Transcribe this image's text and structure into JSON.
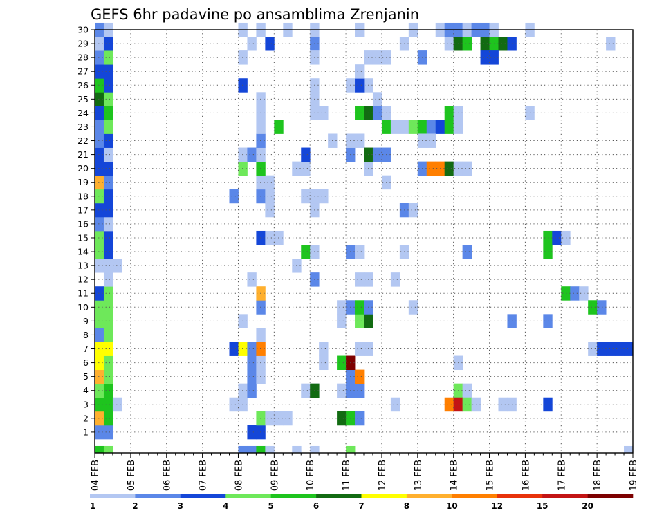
{
  "chart_data": {
    "type": "heatmap",
    "title": "GEFS 6hr padavine po ansamblima Zrenjanin",
    "xlabel": "",
    "ylabel": "",
    "x_tick_labels": [
      "04 FEB",
      "05 FEB",
      "06 FEB",
      "07 FEB",
      "08 FEB",
      "09 FEB",
      "10 FEB",
      "11 FEB",
      "12 FEB",
      "13 FEB",
      "14 FEB",
      "15 FEB",
      "16 FEB",
      "17 FEB",
      "18 FEB",
      "19 FEB"
    ],
    "xlim_steps": [
      0,
      60
    ],
    "step_hours": 6,
    "y_tick_labels": [
      "1",
      "2",
      "3",
      "4",
      "5",
      "6",
      "7",
      "8",
      "9",
      "10",
      "11",
      "12",
      "13",
      "14",
      "15",
      "16",
      "17",
      "18",
      "19",
      "20",
      "21",
      "22",
      "23",
      "24",
      "25",
      "26",
      "27",
      "28",
      "29",
      "30"
    ],
    "ylim": [
      0,
      30
    ],
    "grid": true,
    "legend": "bottom colorbar",
    "colorbar": {
      "boundaries": [
        "1",
        "2",
        "3",
        "4",
        "5",
        "6",
        "7",
        "8",
        "10",
        "12",
        "15",
        "20"
      ],
      "colors": [
        "#b3c7f2",
        "#5b87e8",
        "#1446d8",
        "#6ee85a",
        "#1ec41e",
        "#126b12",
        "#ffff00",
        "#ffb02e",
        "#ff7f00",
        "#e8320a",
        "#c31414",
        "#7d0000"
      ]
    },
    "cells_note": "each cell = [step, member, color_index]; step 0 = 04 FEB 00z, 6 h per step; member 0 = control row below 1",
    "cells": [
      [
        0,
        0,
        4
      ],
      [
        1,
        0,
        3
      ],
      [
        0,
        1,
        1
      ],
      [
        1,
        1,
        1
      ],
      [
        0,
        2,
        7
      ],
      [
        1,
        2,
        4
      ],
      [
        0,
        3,
        4
      ],
      [
        1,
        3,
        4
      ],
      [
        2,
        3,
        0
      ],
      [
        0,
        4,
        3
      ],
      [
        1,
        4,
        4
      ],
      [
        0,
        5,
        7
      ],
      [
        1,
        5,
        3
      ],
      [
        0,
        6,
        6
      ],
      [
        1,
        6,
        3
      ],
      [
        0,
        7,
        6
      ],
      [
        1,
        7,
        6
      ],
      [
        0,
        8,
        1
      ],
      [
        1,
        8,
        3
      ],
      [
        0,
        9,
        3
      ],
      [
        1,
        9,
        3
      ],
      [
        0,
        10,
        3
      ],
      [
        1,
        10,
        3
      ],
      [
        0,
        11,
        2
      ],
      [
        1,
        11,
        3
      ],
      [
        1,
        12,
        0
      ],
      [
        0,
        13,
        0
      ],
      [
        1,
        13,
        0
      ],
      [
        2,
        13,
        0
      ],
      [
        0,
        14,
        3
      ],
      [
        1,
        14,
        2
      ],
      [
        0,
        15,
        3
      ],
      [
        1,
        15,
        2
      ],
      [
        0,
        16,
        1
      ],
      [
        1,
        16,
        0
      ],
      [
        0,
        17,
        2
      ],
      [
        1,
        17,
        2
      ],
      [
        0,
        18,
        3
      ],
      [
        1,
        18,
        2
      ],
      [
        0,
        19,
        7
      ],
      [
        1,
        19,
        1
      ],
      [
        0,
        20,
        2
      ],
      [
        1,
        20,
        2
      ],
      [
        0,
        21,
        2
      ],
      [
        1,
        21,
        0
      ],
      [
        0,
        22,
        1
      ],
      [
        1,
        22,
        2
      ],
      [
        0,
        23,
        1
      ],
      [
        1,
        23,
        3
      ],
      [
        0,
        24,
        2
      ],
      [
        1,
        24,
        4
      ],
      [
        0,
        25,
        5
      ],
      [
        1,
        25,
        3
      ],
      [
        0,
        26,
        4
      ],
      [
        1,
        26,
        2
      ],
      [
        0,
        27,
        2
      ],
      [
        1,
        27,
        2
      ],
      [
        0,
        28,
        1
      ],
      [
        1,
        28,
        3
      ],
      [
        0,
        29,
        0
      ],
      [
        1,
        29,
        2
      ],
      [
        0,
        30,
        1
      ],
      [
        1,
        30,
        0
      ],
      [
        16,
        0,
        1
      ],
      [
        17,
        0,
        1
      ],
      [
        18,
        0,
        4
      ],
      [
        19,
        0,
        0
      ],
      [
        17,
        1,
        2
      ],
      [
        18,
        1,
        2
      ],
      [
        18,
        2,
        3
      ],
      [
        19,
        2,
        0
      ],
      [
        20,
        2,
        0
      ],
      [
        21,
        2,
        0
      ],
      [
        15,
        3,
        0
      ],
      [
        16,
        3,
        0
      ],
      [
        16,
        4,
        0
      ],
      [
        17,
        4,
        1
      ],
      [
        17,
        5,
        1
      ],
      [
        18,
        5,
        0
      ],
      [
        17,
        6,
        1
      ],
      [
        18,
        6,
        0
      ],
      [
        15,
        7,
        2
      ],
      [
        16,
        7,
        6
      ],
      [
        17,
        7,
        1
      ],
      [
        18,
        7,
        8
      ],
      [
        18,
        8,
        0
      ],
      [
        16,
        9,
        0
      ],
      [
        18,
        10,
        1
      ],
      [
        18,
        11,
        7
      ],
      [
        17,
        12,
        0
      ],
      [
        18,
        15,
        2
      ],
      [
        19,
        15,
        0
      ],
      [
        20,
        15,
        0
      ],
      [
        19,
        17,
        0
      ],
      [
        19,
        18,
        0
      ],
      [
        15,
        18,
        1
      ],
      [
        18,
        18,
        1
      ],
      [
        19,
        18,
        0
      ],
      [
        18,
        19,
        0
      ],
      [
        19,
        19,
        0
      ],
      [
        16,
        20,
        3
      ],
      [
        18,
        20,
        4
      ],
      [
        16,
        21,
        0
      ],
      [
        17,
        21,
        1
      ],
      [
        18,
        21,
        0
      ],
      [
        18,
        22,
        1
      ],
      [
        18,
        23,
        0
      ],
      [
        18,
        24,
        0
      ],
      [
        18,
        25,
        0
      ],
      [
        16,
        26,
        2
      ],
      [
        16,
        28,
        0
      ],
      [
        17,
        29,
        0
      ],
      [
        16,
        30,
        0
      ],
      [
        18,
        30,
        0
      ],
      [
        22,
        0,
        0
      ],
      [
        24,
        0,
        0
      ],
      [
        23,
        20,
        0
      ],
      [
        22,
        20,
        0
      ],
      [
        20,
        23,
        4
      ],
      [
        24,
        29,
        0
      ],
      [
        19,
        29,
        2
      ],
      [
        21,
        30,
        0
      ],
      [
        23,
        4,
        0
      ],
      [
        24,
        4,
        0
      ],
      [
        24,
        12,
        1
      ],
      [
        22,
        13,
        0
      ],
      [
        25,
        6,
        0
      ],
      [
        23,
        21,
        2
      ],
      [
        24,
        24,
        0
      ],
      [
        25,
        24,
        0
      ],
      [
        24,
        25,
        0
      ],
      [
        24,
        26,
        0
      ],
      [
        24,
        29,
        1
      ],
      [
        24,
        30,
        0
      ],
      [
        24,
        4,
        5
      ],
      [
        23,
        14,
        4
      ],
      [
        24,
        14,
        0
      ],
      [
        24,
        17,
        0
      ],
      [
        24,
        18,
        0
      ],
      [
        23,
        18,
        0
      ],
      [
        25,
        18,
        0
      ],
      [
        24,
        28,
        0
      ],
      [
        29,
        30,
        0
      ],
      [
        28,
        0,
        3
      ],
      [
        27,
        2,
        5
      ],
      [
        28,
        2,
        4
      ],
      [
        29,
        2,
        1
      ],
      [
        27,
        4,
        0
      ],
      [
        28,
        4,
        1
      ],
      [
        29,
        4,
        1
      ],
      [
        28,
        5,
        1
      ],
      [
        29,
        5,
        8
      ],
      [
        27,
        6,
        4
      ],
      [
        28,
        6,
        11
      ],
      [
        25,
        7,
        0
      ],
      [
        29,
        7,
        0
      ],
      [
        30,
        7,
        0
      ],
      [
        27,
        9,
        0
      ],
      [
        29,
        9,
        3
      ],
      [
        30,
        9,
        5
      ],
      [
        27,
        10,
        0
      ],
      [
        28,
        10,
        1
      ],
      [
        29,
        10,
        4
      ],
      [
        30,
        10,
        1
      ],
      [
        28,
        14,
        1
      ],
      [
        29,
        14,
        0
      ],
      [
        29,
        12,
        0
      ],
      [
        30,
        12,
        0
      ],
      [
        28,
        21,
        1
      ],
      [
        26,
        22,
        0
      ],
      [
        28,
        22,
        0
      ],
      [
        29,
        22,
        0
      ],
      [
        30,
        20,
        0
      ],
      [
        30,
        21,
        5
      ],
      [
        31,
        21,
        1
      ],
      [
        32,
        21,
        1
      ],
      [
        29,
        24,
        4
      ],
      [
        30,
        24,
        5
      ],
      [
        31,
        24,
        1
      ],
      [
        32,
        24,
        0
      ],
      [
        31,
        25,
        0
      ],
      [
        30,
        26,
        0
      ],
      [
        28,
        26,
        0
      ],
      [
        29,
        26,
        2
      ],
      [
        29,
        27,
        0
      ],
      [
        30,
        28,
        0
      ],
      [
        31,
        28,
        0
      ],
      [
        32,
        28,
        0
      ],
      [
        33,
        3,
        0
      ],
      [
        33,
        12,
        0
      ],
      [
        32,
        19,
        0
      ],
      [
        32,
        23,
        4
      ],
      [
        33,
        23,
        0
      ],
      [
        34,
        23,
        0
      ],
      [
        35,
        23,
        3
      ],
      [
        36,
        23,
        4
      ],
      [
        37,
        23,
        1
      ],
      [
        38,
        23,
        2
      ],
      [
        34,
        29,
        0
      ],
      [
        34,
        14,
        0
      ],
      [
        34,
        17,
        1
      ],
      [
        35,
        17,
        0
      ],
      [
        36,
        22,
        0
      ],
      [
        37,
        22,
        0
      ],
      [
        35,
        10,
        0
      ],
      [
        36,
        28,
        1
      ],
      [
        35,
        30,
        0
      ],
      [
        36,
        20,
        1
      ],
      [
        37,
        20,
        8
      ],
      [
        38,
        20,
        8
      ],
      [
        39,
        20,
        5
      ],
      [
        40,
        20,
        0
      ],
      [
        41,
        20,
        0
      ],
      [
        39,
        23,
        4
      ],
      [
        40,
        23,
        0
      ],
      [
        39,
        24,
        4
      ],
      [
        40,
        24,
        0
      ],
      [
        38,
        30,
        0
      ],
      [
        39,
        30,
        1
      ],
      [
        40,
        30,
        1
      ],
      [
        41,
        30,
        0
      ],
      [
        39,
        29,
        0
      ],
      [
        40,
        29,
        5
      ],
      [
        41,
        29,
        4
      ],
      [
        40,
        4,
        3
      ],
      [
        41,
        4,
        0
      ],
      [
        39,
        3,
        8
      ],
      [
        40,
        3,
        10
      ],
      [
        41,
        3,
        3
      ],
      [
        42,
        3,
        0
      ],
      [
        40,
        6,
        0
      ],
      [
        41,
        14,
        1
      ],
      [
        42,
        30,
        1
      ],
      [
        43,
        30,
        1
      ],
      [
        44,
        30,
        0
      ],
      [
        43,
        29,
        5
      ],
      [
        44,
        29,
        4
      ],
      [
        45,
        29,
        5
      ],
      [
        46,
        29,
        2
      ],
      [
        43,
        28,
        2
      ],
      [
        44,
        28,
        2
      ],
      [
        45,
        3,
        0
      ],
      [
        46,
        3,
        0
      ],
      [
        46,
        9,
        1
      ],
      [
        48,
        30,
        0
      ],
      [
        48,
        24,
        0
      ],
      [
        50,
        9,
        1
      ],
      [
        50,
        14,
        4
      ],
      [
        50,
        15,
        4
      ],
      [
        51,
        15,
        2
      ],
      [
        52,
        15,
        0
      ],
      [
        52,
        11,
        4
      ],
      [
        53,
        11,
        1
      ],
      [
        54,
        11,
        0
      ],
      [
        55,
        10,
        4
      ],
      [
        56,
        10,
        1
      ],
      [
        55,
        7,
        0
      ],
      [
        56,
        7,
        2
      ],
      [
        57,
        7,
        2
      ],
      [
        58,
        7,
        2
      ],
      [
        59,
        7,
        2
      ],
      [
        57,
        29,
        0
      ],
      [
        59,
        0,
        0
      ],
      [
        50,
        3,
        2
      ]
    ]
  }
}
